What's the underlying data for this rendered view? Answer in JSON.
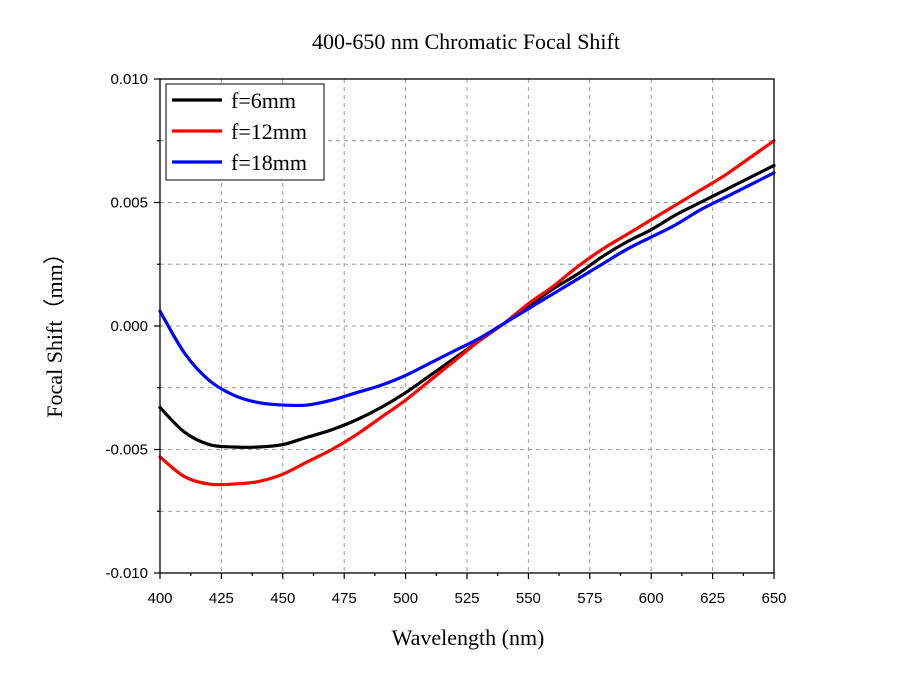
{
  "chart_data": {
    "type": "line",
    "title": "400-650 nm Chromatic Focal Shift",
    "xlabel": "Wavelength (nm)",
    "ylabel": "Focal Shift（mm）",
    "xlim": [
      400,
      650
    ],
    "ylim": [
      -0.01,
      0.01
    ],
    "x_ticks": [
      400,
      425,
      450,
      475,
      500,
      525,
      550,
      575,
      600,
      625,
      650
    ],
    "x_tick_labels": [
      "400",
      "425",
      "450",
      "475",
      "500",
      "525",
      "550",
      "575",
      "600",
      "625",
      "650"
    ],
    "y_ticks": [
      -0.01,
      -0.005,
      0.0,
      0.005,
      0.01
    ],
    "y_tick_labels": [
      "-0.010",
      "-0.005",
      "0.000",
      "0.005",
      "0.010"
    ],
    "grid": true,
    "legend_position": "top-left",
    "x": [
      400,
      410,
      420,
      430,
      440,
      450,
      460,
      470,
      480,
      490,
      500,
      510,
      520,
      530,
      540,
      550,
      560,
      570,
      580,
      590,
      600,
      610,
      620,
      630,
      640,
      650
    ],
    "series": [
      {
        "name": "f=6mm",
        "color": "#000000",
        "values": [
          -0.0033,
          -0.0043,
          -0.0048,
          -0.0049,
          -0.0049,
          -0.0048,
          -0.0045,
          -0.0042,
          -0.0038,
          -0.0033,
          -0.0027,
          -0.002,
          -0.0013,
          -0.0006,
          0.0001,
          0.0008,
          0.0015,
          0.0021,
          0.0028,
          0.0034,
          0.0039,
          0.0045,
          0.005,
          0.0055,
          0.006,
          0.0065
        ]
      },
      {
        "name": "f=12mm",
        "color": "#ff0000",
        "values": [
          -0.0053,
          -0.0061,
          -0.0064,
          -0.0064,
          -0.0063,
          -0.006,
          -0.0055,
          -0.005,
          -0.0044,
          -0.0037,
          -0.003,
          -0.0022,
          -0.0014,
          -0.0006,
          0.0001,
          0.0009,
          0.0016,
          0.0024,
          0.0031,
          0.0037,
          0.0043,
          0.0049,
          0.0055,
          0.0061,
          0.0068,
          0.0075
        ]
      },
      {
        "name": "f=18mm",
        "color": "#0000ff",
        "values": [
          0.0006,
          -0.0011,
          -0.0022,
          -0.0028,
          -0.0031,
          -0.0032,
          -0.0032,
          -0.003,
          -0.0027,
          -0.0024,
          -0.002,
          -0.0015,
          -0.001,
          -0.0005,
          0.0001,
          0.0007,
          0.0013,
          0.0019,
          0.0025,
          0.0031,
          0.0036,
          0.0041,
          0.0047,
          0.0052,
          0.0057,
          0.0062
        ]
      }
    ]
  }
}
